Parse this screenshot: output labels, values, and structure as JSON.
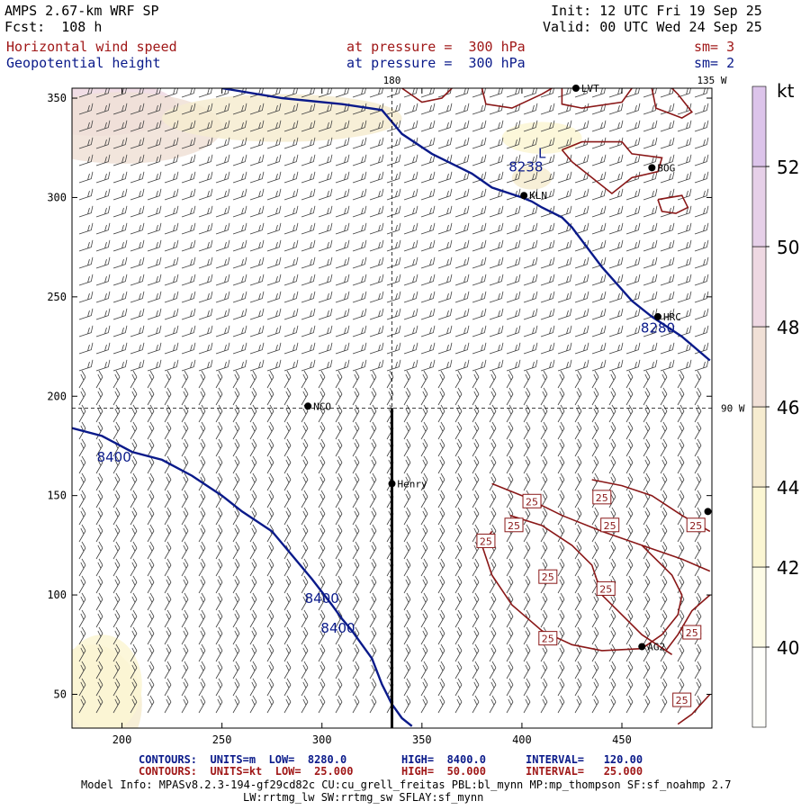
{
  "header": {
    "model": "AMPS 2.67-km WRF SP",
    "fcst": "Fcst:  108 h",
    "init": "Init: 12 UTC Fri 19 Sep 25",
    "valid": "Valid: 00 UTC Wed 24 Sep 25",
    "field1": "Horizontal wind speed",
    "field2": "Geopotential height",
    "pressure1": "at pressure =  300 hPa",
    "pressure2": "at pressure =  300 hPa",
    "sm1": "sm= 3",
    "sm2": "sm= 2"
  },
  "footer": {
    "line1_a": "CONTOURS:  UNITS=m  LOW=  8280.0",
    "line1_b": "HIGH=  8400.0",
    "line1_c": "INTERVAL=   120.00",
    "line2_a": "CONTOURS:  UNITS=kt  LOW=  25.000",
    "line2_b": "HIGH=  50.000",
    "line2_c": "INTERVAL=   25.000",
    "model_info": "Model Info: MPASv8.2.3-194-gf29cd82c CU:cu_grell_freitas PBL:bl_mynn MP:mp_thompson SF:sf_noahmp 2.7",
    "model_info2": "LW:rrtmg_lw SW:rrtmg_sw SFLAY:sf_mynn"
  },
  "colors": {
    "height_contour": "#0a1a8a",
    "speed_contour": "#8a1818",
    "barb": "#404040"
  },
  "chart_data": {
    "type": "heatmap",
    "title": "Horizontal wind speed / Geopotential height",
    "xlim": [
      175,
      495
    ],
    "ylim": [
      33,
      355
    ],
    "x_ticks": [
      200,
      250,
      300,
      350,
      400,
      450
    ],
    "y_ticks": [
      50,
      100,
      150,
      200,
      250,
      300,
      350
    ],
    "colorbar": {
      "unit": "kt",
      "levels": [
        38,
        40,
        42,
        44,
        46,
        48,
        50,
        52,
        54
      ],
      "tick_labels": [
        40,
        42,
        44,
        46,
        48,
        50,
        52
      ],
      "colors": [
        "#fefefa",
        "#fdfbe6",
        "#fbf6d3",
        "#f6ecd0",
        "#f0e0d6",
        "#eed8e2",
        "#e6d0e8",
        "#dcc4ea"
      ]
    },
    "lon_lines": [
      {
        "label": "180",
        "x": 335
      },
      {
        "label": "135 W",
        "x": 495
      }
    ],
    "lat_line": {
      "label": "90 W",
      "y": 194
    },
    "height_contours": [
      {
        "value": 8280,
        "label": "8280",
        "points": [
          [
            250,
            355
          ],
          [
            280,
            350
          ],
          [
            310,
            347
          ],
          [
            330,
            344
          ],
          [
            335,
            338
          ],
          [
            340,
            332
          ],
          [
            355,
            322
          ],
          [
            375,
            312
          ],
          [
            385,
            305
          ],
          [
            400,
            300
          ],
          [
            405,
            298
          ],
          [
            410,
            295
          ],
          [
            420,
            290
          ],
          [
            425,
            285
          ],
          [
            440,
            265
          ],
          [
            455,
            248
          ],
          [
            465,
            240
          ],
          [
            480,
            230
          ],
          [
            494,
            218
          ]
        ]
      },
      {
        "value": 8400,
        "label": "8400",
        "points": [
          [
            175,
            184
          ],
          [
            190,
            180
          ],
          [
            205,
            172
          ],
          [
            220,
            168
          ],
          [
            235,
            160
          ],
          [
            250,
            150
          ],
          [
            260,
            142
          ],
          [
            275,
            132
          ],
          [
            285,
            120
          ],
          [
            295,
            108
          ],
          [
            305,
            95
          ],
          [
            310,
            88
          ],
          [
            315,
            82
          ],
          [
            320,
            75
          ],
          [
            325,
            68
          ],
          [
            330,
            55
          ],
          [
            335,
            45
          ],
          [
            340,
            38
          ],
          [
            345,
            34
          ]
        ]
      }
    ],
    "height_labels": [
      {
        "text": "8238",
        "x": 402,
        "y": 313
      },
      {
        "text": "8280",
        "x": 468,
        "y": 232
      },
      {
        "text": "8400",
        "x": 196,
        "y": 167
      },
      {
        "text": "8400",
        "x": 300,
        "y": 96
      },
      {
        "text": "8400",
        "x": 308,
        "y": 81
      },
      {
        "text": "L",
        "x": 410,
        "y": 320
      }
    ],
    "speed_contours": [
      {
        "value": 25,
        "points": [
          [
            340,
            355
          ],
          [
            350,
            348
          ],
          [
            360,
            350
          ],
          [
            365,
            355
          ]
        ]
      },
      {
        "value": 25,
        "points": [
          [
            380,
            355
          ],
          [
            382,
            347
          ],
          [
            395,
            345
          ],
          [
            410,
            352
          ],
          [
            415,
            355
          ]
        ]
      },
      {
        "value": 25,
        "points": [
          [
            420,
            355
          ],
          [
            420,
            347
          ],
          [
            430,
            345
          ],
          [
            450,
            348
          ],
          [
            455,
            355
          ]
        ]
      },
      {
        "value": 25,
        "points": [
          [
            465,
            355
          ],
          [
            467,
            345
          ],
          [
            480,
            340
          ],
          [
            485,
            343
          ],
          [
            478,
            352
          ],
          [
            475,
            355
          ]
        ]
      },
      {
        "value": 25,
        "points": [
          [
            420,
            324
          ],
          [
            430,
            328
          ],
          [
            450,
            328
          ],
          [
            455,
            322
          ],
          [
            470,
            320
          ],
          [
            468,
            313
          ],
          [
            455,
            310
          ],
          [
            445,
            302
          ],
          [
            435,
            310
          ],
          [
            425,
            318
          ],
          [
            420,
            324
          ]
        ]
      },
      {
        "value": 25,
        "points": [
          [
            468,
            299
          ],
          [
            480,
            301
          ],
          [
            483,
            295
          ],
          [
            477,
            292
          ],
          [
            470,
            293
          ],
          [
            468,
            299
          ]
        ]
      },
      {
        "value": 25,
        "points": [
          [
            385,
            156
          ],
          [
            400,
            150
          ],
          [
            420,
            140
          ],
          [
            440,
            132
          ],
          [
            460,
            125
          ],
          [
            480,
            118
          ],
          [
            494,
            112
          ]
        ]
      },
      {
        "value": 25,
        "points": [
          [
            394,
            140
          ],
          [
            410,
            135
          ],
          [
            425,
            125
          ],
          [
            435,
            115
          ],
          [
            440,
            100
          ],
          [
            450,
            90
          ],
          [
            460,
            80
          ],
          [
            475,
            70
          ]
        ]
      },
      {
        "value": 25,
        "points": [
          [
            385,
            132
          ],
          [
            380,
            125
          ],
          [
            385,
            110
          ],
          [
            395,
            95
          ],
          [
            410,
            82
          ],
          [
            425,
            75
          ],
          [
            440,
            72
          ],
          [
            460,
            73
          ],
          [
            470,
            80
          ],
          [
            478,
            90
          ],
          [
            480,
            100
          ],
          [
            475,
            110
          ],
          [
            465,
            120
          ],
          [
            460,
            125
          ]
        ]
      },
      {
        "value": 25,
        "points": [
          [
            435,
            158
          ],
          [
            450,
            155
          ],
          [
            465,
            150
          ],
          [
            480,
            140
          ],
          [
            494,
            132
          ]
        ]
      },
      {
        "value": 25,
        "points": [
          [
            494,
            100
          ],
          [
            485,
            92
          ],
          [
            478,
            80
          ],
          [
            472,
            72
          ]
        ]
      },
      {
        "value": 25,
        "points": [
          [
            494,
            50
          ],
          [
            485,
            40
          ],
          [
            478,
            35
          ]
        ]
      }
    ],
    "speed_labels": [
      {
        "text": "25",
        "x": 405,
        "y": 147
      },
      {
        "text": "25",
        "x": 396,
        "y": 135
      },
      {
        "text": "25",
        "x": 382,
        "y": 127
      },
      {
        "text": "25",
        "x": 440,
        "y": 149
      },
      {
        "text": "25",
        "x": 444,
        "y": 135
      },
      {
        "text": "25",
        "x": 487,
        "y": 135
      },
      {
        "text": "25",
        "x": 413,
        "y": 109
      },
      {
        "text": "25",
        "x": 442,
        "y": 103
      },
      {
        "text": "25",
        "x": 413,
        "y": 78
      },
      {
        "text": "25",
        "x": 485,
        "y": 81
      },
      {
        "text": "25",
        "x": 480,
        "y": 47
      }
    ],
    "stations": [
      {
        "name": "LVT",
        "x": 427,
        "y": 355
      },
      {
        "name": "BOG",
        "x": 465,
        "y": 315
      },
      {
        "name": "KLN",
        "x": 401,
        "y": 301
      },
      {
        "name": "HRC",
        "x": 468,
        "y": 240
      },
      {
        "name": "NCO",
        "x": 293,
        "y": 195
      },
      {
        "name": "Henry",
        "x": 335,
        "y": 156
      },
      {
        "name": "AG2",
        "x": 460,
        "y": 74
      },
      {
        "name": "",
        "x": 493,
        "y": 142
      }
    ],
    "cross_section": {
      "x": 335,
      "y_top": 194,
      "y_bottom": 33
    },
    "shading": [
      {
        "x": 188,
        "y": 345,
        "rx": 40,
        "ry": 14,
        "level": 48
      },
      {
        "x": 200,
        "y": 335,
        "rx": 50,
        "ry": 18,
        "level": 46
      },
      {
        "x": 280,
        "y": 340,
        "rx": 60,
        "ry": 12,
        "level": 44
      },
      {
        "x": 410,
        "y": 330,
        "rx": 20,
        "ry": 8,
        "level": 42
      },
      {
        "x": 405,
        "y": 310,
        "rx": 10,
        "ry": 6,
        "level": 44
      },
      {
        "x": 185,
        "y": 45,
        "rx": 25,
        "ry": 30,
        "level": 44
      },
      {
        "x": 190,
        "y": 55,
        "rx": 20,
        "ry": 25,
        "level": 42
      }
    ]
  }
}
